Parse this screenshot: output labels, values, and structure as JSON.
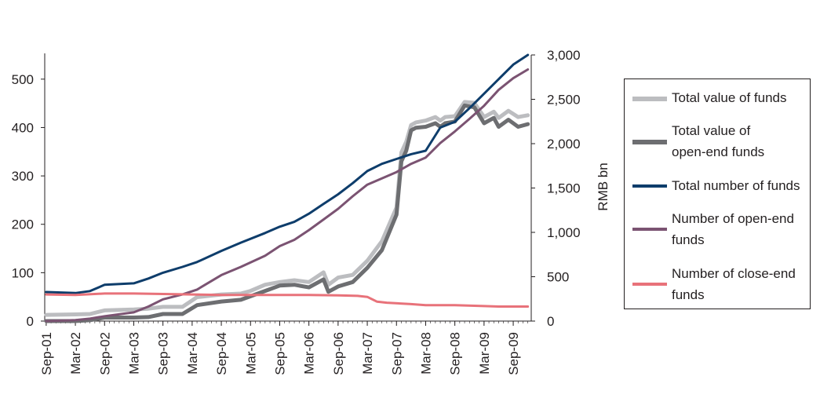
{
  "chart_data": {
    "type": "line",
    "title": "",
    "xlabel": "",
    "y_left": {
      "label": "",
      "ylim": [
        0,
        550
      ],
      "ticks": [
        0,
        100,
        200,
        300,
        400,
        500
      ]
    },
    "y_right": {
      "label": "RMB bn",
      "ylim": [
        0,
        3000
      ],
      "ticks": [
        0,
        500,
        1000,
        1500,
        2000,
        2500,
        3000
      ],
      "tick_labels": [
        "0",
        "500",
        "1,000",
        "1,500",
        "2,000",
        "2,500",
        "3,000"
      ]
    },
    "x_ticks": [
      "Sep-01",
      "Mar-02",
      "Sep-02",
      "Mar-03",
      "Sep-03",
      "Mar-04",
      "Sep-04",
      "Mar-05",
      "Sep-05",
      "Mar-06",
      "Sep-06",
      "Mar-07",
      "Sep-07",
      "Mar-08",
      "Sep-08",
      "Mar-09",
      "Sep-09"
    ],
    "x_range": [
      "2001-09",
      "2009-12"
    ],
    "grid": false,
    "legend_position": "right",
    "series": [
      {
        "name": "Total value of funds",
        "axis": "right",
        "color": "#bcbdc0",
        "width": 5,
        "points": [
          [
            "2001-09",
            70
          ],
          [
            "2002-03",
            75
          ],
          [
            "2002-06",
            80
          ],
          [
            "2002-09",
            120
          ],
          [
            "2003-03",
            130
          ],
          [
            "2003-06",
            140
          ],
          [
            "2003-09",
            160
          ],
          [
            "2004-01",
            160
          ],
          [
            "2004-04",
            270
          ],
          [
            "2004-09",
            300
          ],
          [
            "2005-01",
            310
          ],
          [
            "2005-03",
            340
          ],
          [
            "2005-06",
            410
          ],
          [
            "2005-09",
            440
          ],
          [
            "2005-12",
            460
          ],
          [
            "2006-03",
            440
          ],
          [
            "2006-06",
            550
          ],
          [
            "2006-07",
            410
          ],
          [
            "2006-09",
            490
          ],
          [
            "2006-12",
            520
          ],
          [
            "2007-03",
            680
          ],
          [
            "2007-06",
            900
          ],
          [
            "2007-09",
            1280
          ],
          [
            "2007-10",
            1900
          ],
          [
            "2007-11",
            2020
          ],
          [
            "2007-12",
            2210
          ],
          [
            "2008-01",
            2240
          ],
          [
            "2008-03",
            2260
          ],
          [
            "2008-05",
            2300
          ],
          [
            "2008-06",
            2260
          ],
          [
            "2008-07",
            2300
          ],
          [
            "2008-09",
            2310
          ],
          [
            "2008-11",
            2470
          ],
          [
            "2009-01",
            2460
          ],
          [
            "2009-03",
            2300
          ],
          [
            "2009-05",
            2360
          ],
          [
            "2009-06",
            2290
          ],
          [
            "2009-08",
            2370
          ],
          [
            "2009-10",
            2300
          ],
          [
            "2009-12",
            2320
          ]
        ]
      },
      {
        "name": "Total value of\nopen-end funds",
        "axis": "right",
        "color": "#6d6e71",
        "width": 5,
        "points": [
          [
            "2001-09",
            0
          ],
          [
            "2002-03",
            0
          ],
          [
            "2002-06",
            10
          ],
          [
            "2002-09",
            40
          ],
          [
            "2003-03",
            40
          ],
          [
            "2003-06",
            45
          ],
          [
            "2003-09",
            80
          ],
          [
            "2004-01",
            80
          ],
          [
            "2004-04",
            180
          ],
          [
            "2004-09",
            220
          ],
          [
            "2005-01",
            240
          ],
          [
            "2005-03",
            280
          ],
          [
            "2005-06",
            340
          ],
          [
            "2005-09",
            400
          ],
          [
            "2005-12",
            410
          ],
          [
            "2006-03",
            380
          ],
          [
            "2006-06",
            470
          ],
          [
            "2006-07",
            330
          ],
          [
            "2006-09",
            390
          ],
          [
            "2006-12",
            440
          ],
          [
            "2007-03",
            600
          ],
          [
            "2007-06",
            800
          ],
          [
            "2007-09",
            1200
          ],
          [
            "2007-10",
            1800
          ],
          [
            "2007-11",
            1920
          ],
          [
            "2007-12",
            2150
          ],
          [
            "2008-01",
            2180
          ],
          [
            "2008-03",
            2190
          ],
          [
            "2008-05",
            2230
          ],
          [
            "2008-06",
            2190
          ],
          [
            "2008-07",
            2230
          ],
          [
            "2008-09",
            2250
          ],
          [
            "2008-11",
            2430
          ],
          [
            "2009-01",
            2410
          ],
          [
            "2009-03",
            2230
          ],
          [
            "2009-05",
            2290
          ],
          [
            "2009-06",
            2190
          ],
          [
            "2009-08",
            2270
          ],
          [
            "2009-10",
            2190
          ],
          [
            "2009-12",
            2220
          ]
        ]
      },
      {
        "name": "Total number of funds",
        "axis": "left",
        "color": "#0e3d6b",
        "width": 3,
        "points": [
          [
            "2001-09",
            60
          ],
          [
            "2002-03",
            58
          ],
          [
            "2002-06",
            62
          ],
          [
            "2002-09",
            75
          ],
          [
            "2003-03",
            78
          ],
          [
            "2003-06",
            88
          ],
          [
            "2003-09",
            100
          ],
          [
            "2004-01",
            112
          ],
          [
            "2004-04",
            122
          ],
          [
            "2004-09",
            145
          ],
          [
            "2005-01",
            162
          ],
          [
            "2005-06",
            182
          ],
          [
            "2005-09",
            195
          ],
          [
            "2005-12",
            205
          ],
          [
            "2006-03",
            222
          ],
          [
            "2006-06",
            242
          ],
          [
            "2006-09",
            262
          ],
          [
            "2006-12",
            285
          ],
          [
            "2007-03",
            310
          ],
          [
            "2007-06",
            325
          ],
          [
            "2007-09",
            335
          ],
          [
            "2007-12",
            345
          ],
          [
            "2008-03",
            352
          ],
          [
            "2008-06",
            400
          ],
          [
            "2008-09",
            412
          ],
          [
            "2008-12",
            440
          ],
          [
            "2009-03",
            470
          ],
          [
            "2009-06",
            500
          ],
          [
            "2009-09",
            530
          ],
          [
            "2009-12",
            550
          ]
        ]
      },
      {
        "name": "Number of open-end\nfunds",
        "axis": "left",
        "color": "#7b5372",
        "width": 3,
        "points": [
          [
            "2001-09",
            0
          ],
          [
            "2002-03",
            2
          ],
          [
            "2002-06",
            5
          ],
          [
            "2002-09",
            10
          ],
          [
            "2003-03",
            18
          ],
          [
            "2003-06",
            30
          ],
          [
            "2003-09",
            45
          ],
          [
            "2004-01",
            55
          ],
          [
            "2004-04",
            65
          ],
          [
            "2004-09",
            95
          ],
          [
            "2005-01",
            112
          ],
          [
            "2005-06",
            135
          ],
          [
            "2005-09",
            155
          ],
          [
            "2005-12",
            168
          ],
          [
            "2006-03",
            188
          ],
          [
            "2006-06",
            210
          ],
          [
            "2006-09",
            232
          ],
          [
            "2006-12",
            258
          ],
          [
            "2007-03",
            282
          ],
          [
            "2007-06",
            295
          ],
          [
            "2007-09",
            308
          ],
          [
            "2007-12",
            325
          ],
          [
            "2008-03",
            338
          ],
          [
            "2008-06",
            368
          ],
          [
            "2008-09",
            392
          ],
          [
            "2008-12",
            418
          ],
          [
            "2009-03",
            445
          ],
          [
            "2009-06",
            478
          ],
          [
            "2009-09",
            502
          ],
          [
            "2009-12",
            520
          ]
        ]
      },
      {
        "name": "Number of close-end\nfunds",
        "axis": "left",
        "color": "#e8727a",
        "width": 3,
        "points": [
          [
            "2001-09",
            55
          ],
          [
            "2002-03",
            54
          ],
          [
            "2002-09",
            57
          ],
          [
            "2003-03",
            57
          ],
          [
            "2003-09",
            56
          ],
          [
            "2004-03",
            55
          ],
          [
            "2004-09",
            54
          ],
          [
            "2005-03",
            54
          ],
          [
            "2005-09",
            54
          ],
          [
            "2006-03",
            54
          ],
          [
            "2006-09",
            53
          ],
          [
            "2007-01",
            52
          ],
          [
            "2007-03",
            50
          ],
          [
            "2007-05",
            40
          ],
          [
            "2007-07",
            38
          ],
          [
            "2007-12",
            35
          ],
          [
            "2008-03",
            33
          ],
          [
            "2008-09",
            33
          ],
          [
            "2009-03",
            31
          ],
          [
            "2009-06",
            30
          ],
          [
            "2009-12",
            30
          ]
        ]
      }
    ]
  }
}
